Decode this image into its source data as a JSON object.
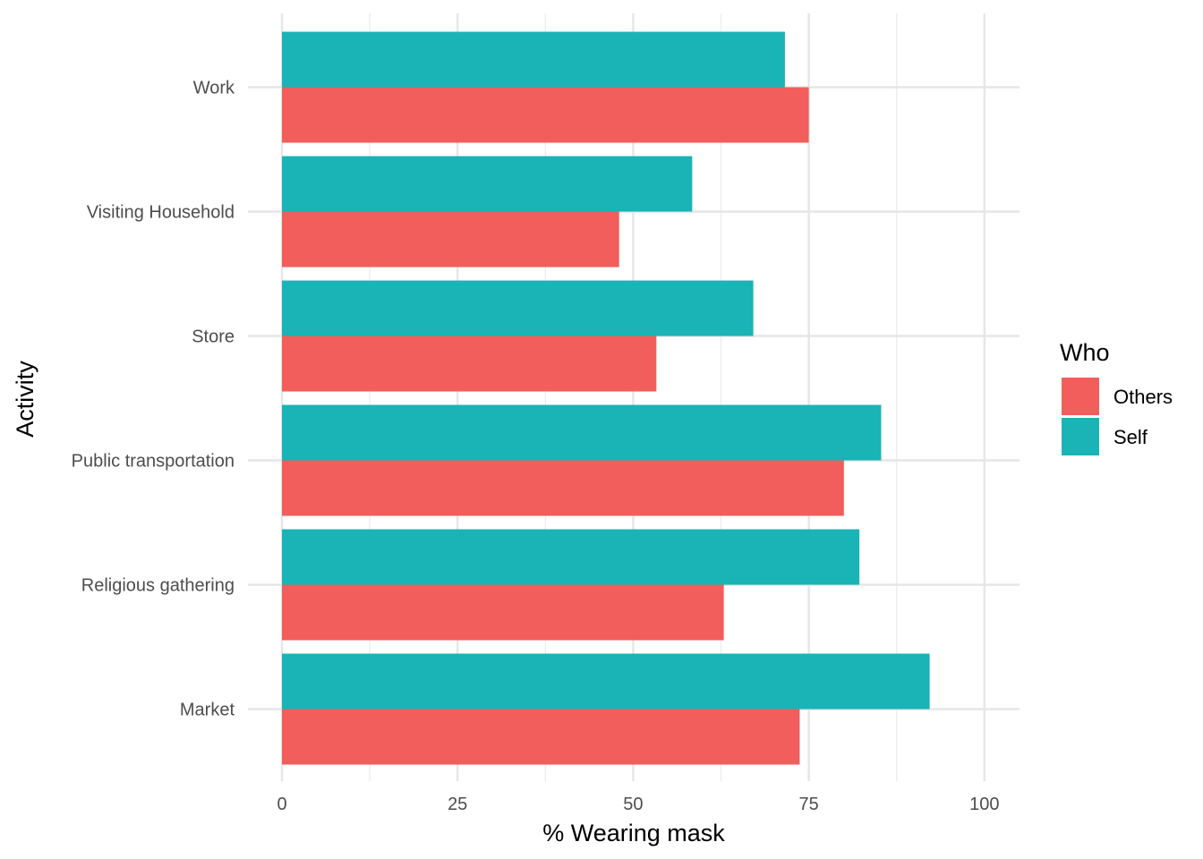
{
  "chart_data": {
    "type": "bar",
    "orientation": "horizontal",
    "categories": [
      "Work",
      "Visiting Household",
      "Store",
      "Public transportation",
      "Religious gathering",
      "Market"
    ],
    "series": [
      {
        "name": "Others",
        "values": [
          75.0,
          48.0,
          53.3,
          80.0,
          62.9,
          73.7
        ],
        "color": "#F25E5B"
      },
      {
        "name": "Self",
        "values": [
          71.6,
          58.4,
          67.1,
          85.3,
          82.2,
          92.2
        ],
        "color": "#1AB3B6"
      }
    ],
    "xlabel": "% Wearing mask",
    "ylabel": "Activity",
    "xlim": [
      0,
      105
    ],
    "xticks": [
      0,
      25,
      50,
      75,
      100
    ],
    "legend": {
      "title": "Who",
      "position": "right"
    },
    "grid": true
  }
}
